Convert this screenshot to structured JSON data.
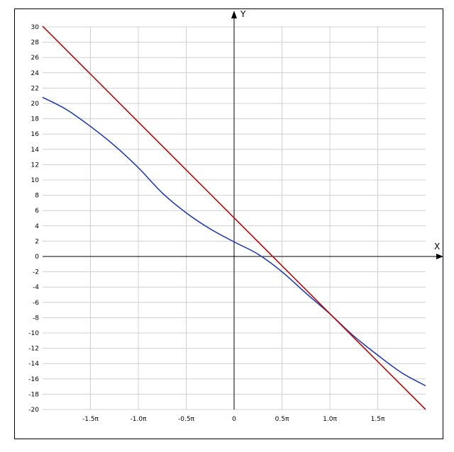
{
  "chart_data": {
    "type": "line",
    "title": "",
    "xlabel": "X",
    "ylabel": "Y",
    "xlim": [
      -6.2832,
      6.2832
    ],
    "ylim": [
      -20,
      30
    ],
    "x_tick_values": [
      -4.7124,
      -3.1416,
      -1.5708,
      0,
      1.5708,
      3.1416,
      4.7124
    ],
    "x_tick_labels": [
      "-1.5π",
      "-1.0π",
      "-0.5π",
      "0",
      "0.5π",
      "1.0π",
      "1.5π"
    ],
    "y_ticks": [
      -20,
      -18,
      -16,
      -14,
      -12,
      -10,
      -8,
      -6,
      -4,
      -2,
      0,
      2,
      4,
      6,
      8,
      10,
      12,
      14,
      16,
      18,
      20,
      22,
      24,
      26,
      28,
      30
    ],
    "grid": true,
    "colors": {
      "curve": "#2a3fb0",
      "line": "#b01010",
      "axis": "#000000",
      "grid": "#d0d0d0"
    },
    "series": [
      {
        "x": [
          -6.2832,
          -5.498,
          -4.7124,
          -3.927,
          -3.1416,
          -2.356,
          -1.5708,
          -0.785,
          0,
          0.785,
          1.5708,
          2.356,
          3.1416,
          3.927,
          4.7124,
          5.498,
          6.2832
        ],
        "values": [
          20.8,
          19.2,
          17.0,
          14.5,
          11.6,
          8.3,
          5.7,
          3.6,
          1.9,
          0.3,
          -2.0,
          -4.8,
          -7.5,
          -10.4,
          -12.9,
          -15.2,
          -16.9
        ]
      },
      {
        "x": [
          -6.2832,
          6.2832
        ],
        "values": [
          30.1,
          -20.0
        ]
      }
    ]
  }
}
